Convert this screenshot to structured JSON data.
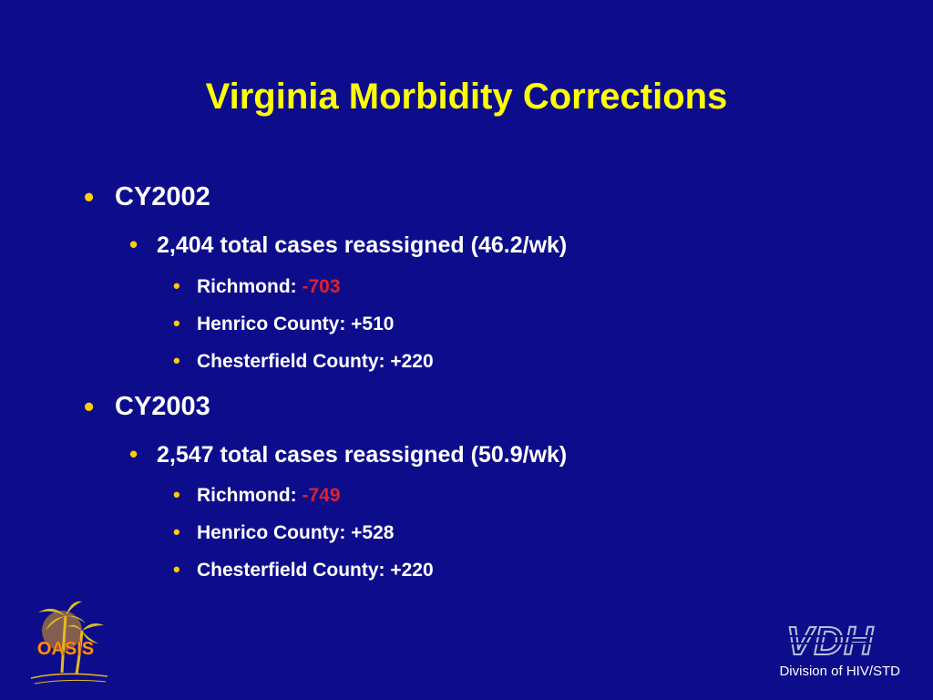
{
  "slide": {
    "title": "Virginia Morbidity Corrections",
    "colors": {
      "background": "#0d0d8c",
      "title": "#ffff00",
      "text": "#ffffff",
      "bullet": "#ffcc00",
      "negative": "#e0202a"
    },
    "sections": [
      {
        "heading": "CY2002",
        "summary": "2,404 total cases reassigned (46.2/wk)",
        "items": [
          {
            "label": "Richmond: ",
            "value": "-703",
            "highlight": true
          },
          {
            "label": "Henrico County: ",
            "value": "+510",
            "highlight": false
          },
          {
            "label": "Chesterfield County: ",
            "value": "+220",
            "highlight": false
          }
        ]
      },
      {
        "heading": "CY2003",
        "summary": "2,547 total cases reassigned (50.9/wk)",
        "items": [
          {
            "label": "Richmond: ",
            "value": "-749",
            "highlight": true
          },
          {
            "label": "Henrico County: ",
            "value": "+528",
            "highlight": false
          },
          {
            "label": "Chesterfield County: ",
            "value": "+220",
            "highlight": false
          }
        ]
      }
    ]
  },
  "footer": {
    "oasis_logo_text": "OASIS",
    "vdh_logo_text": "VDH",
    "division": "Division of HIV/STD"
  }
}
